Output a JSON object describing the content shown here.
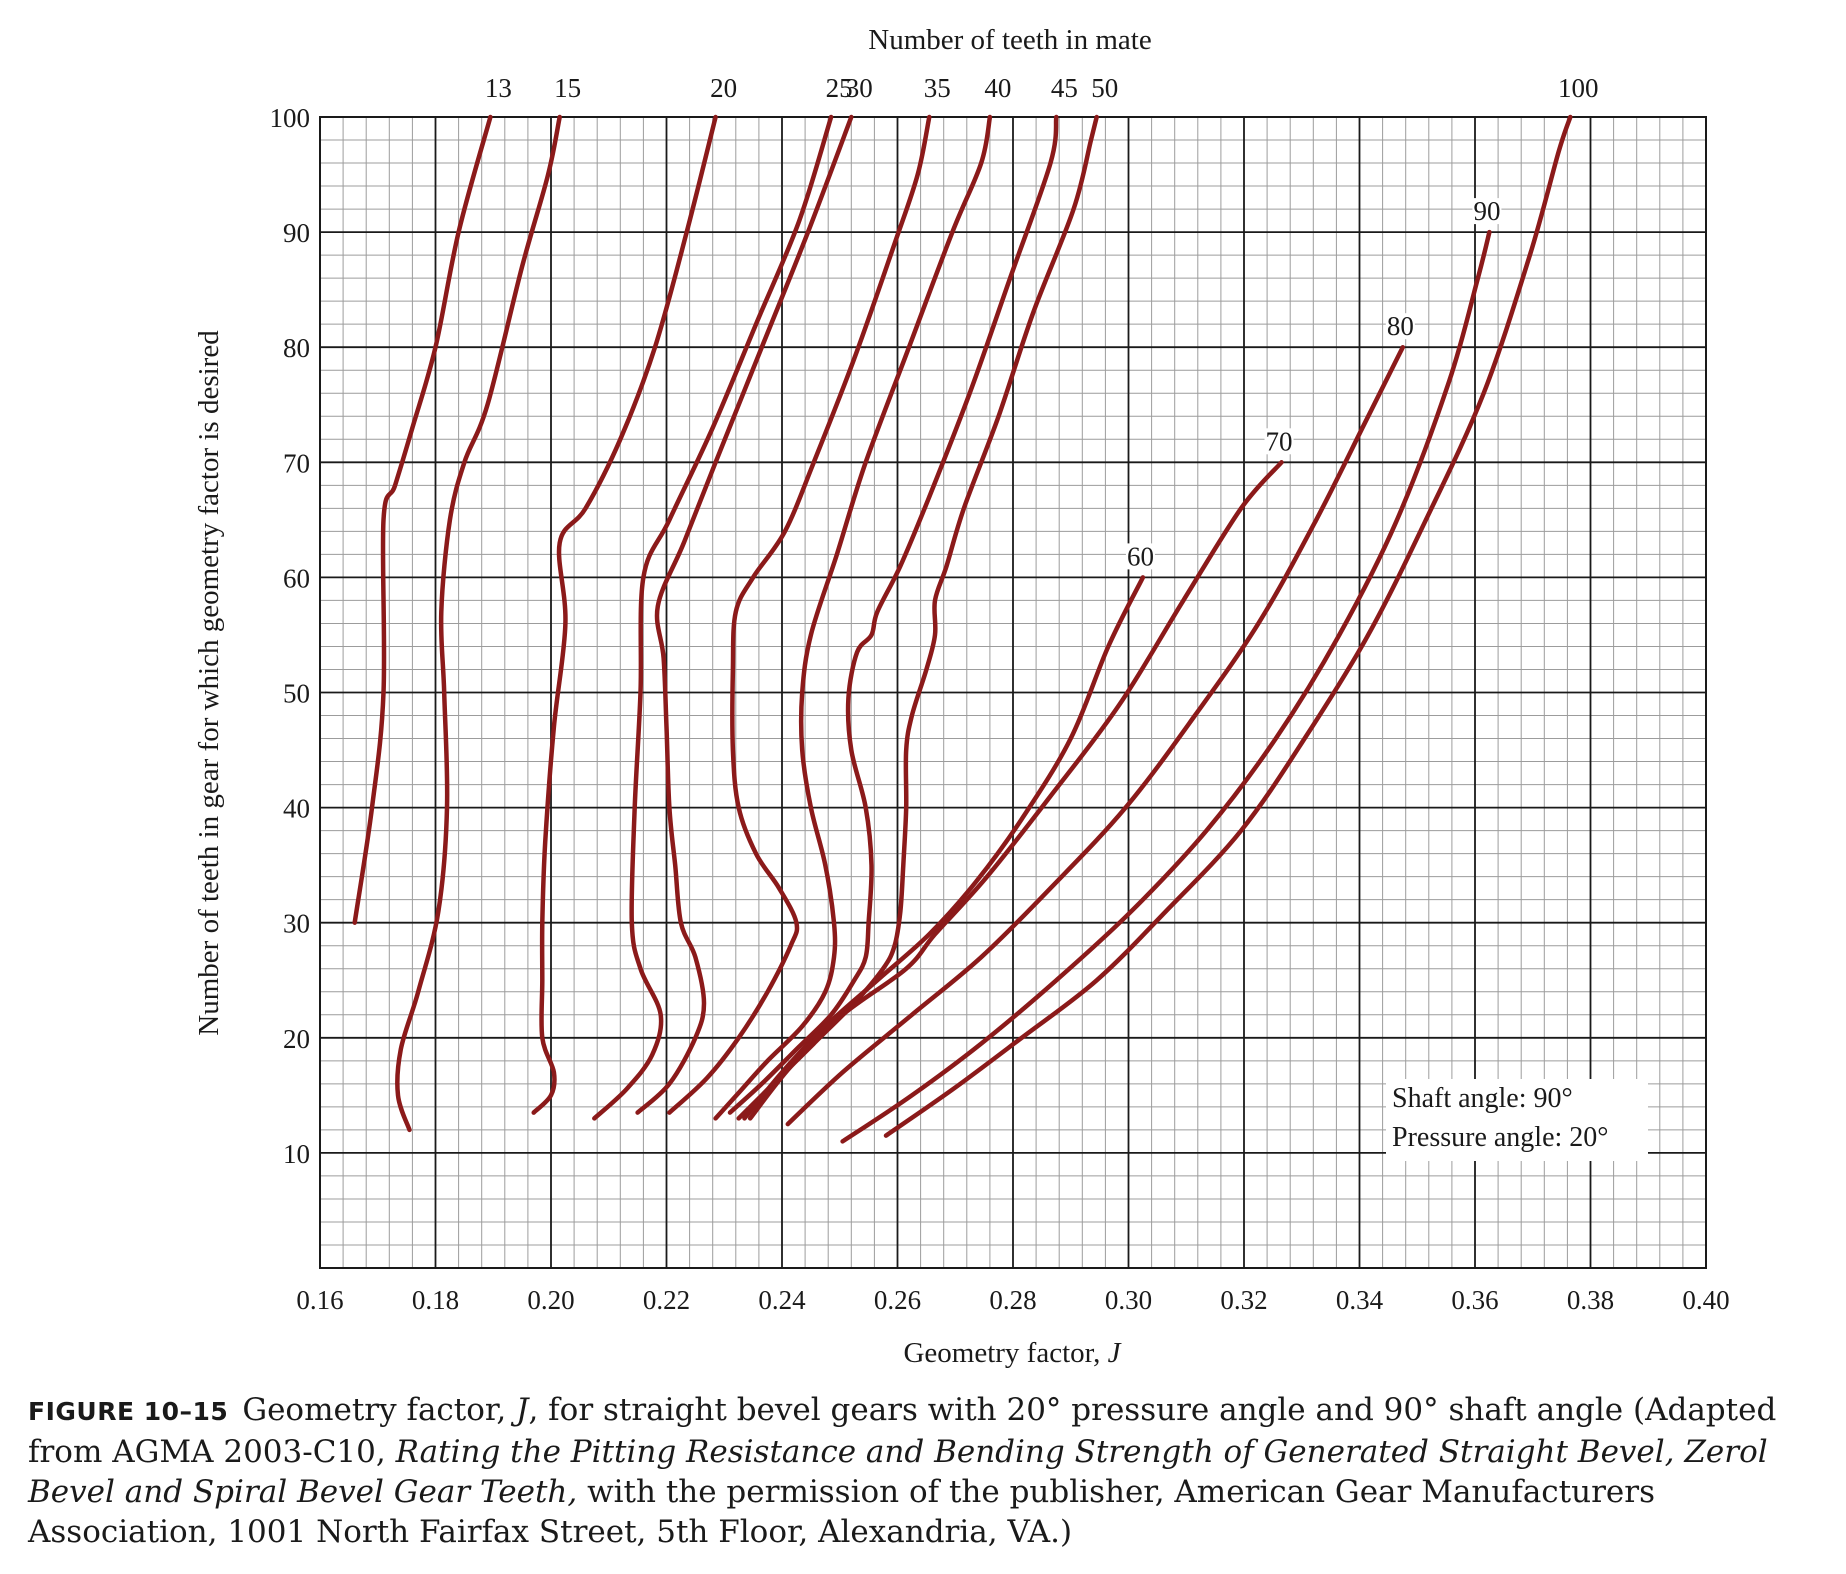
{
  "chart_data": {
    "type": "line",
    "title": "Number of teeth in mate",
    "xlabel": "Geometry factor, ",
    "xlabel_var": "J",
    "ylabel": "Number of teeth in gear for which geometry factor is desired",
    "xlim": [
      0.16,
      0.4
    ],
    "ylim": [
      0,
      100
    ],
    "x_ticks": [
      "0.16",
      "0.18",
      "0.20",
      "0.22",
      "0.24",
      "0.26",
      "0.28",
      "0.30",
      "0.32",
      "0.34",
      "0.36",
      "0.38",
      "0.40"
    ],
    "y_ticks": [
      "10",
      "20",
      "30",
      "40",
      "50",
      "60",
      "70",
      "80",
      "90",
      "100"
    ],
    "grid": true,
    "line_color": "#8b1a1a",
    "notes": [
      "Shaft angle: 90°",
      "Pressure angle: 20°"
    ],
    "series": [
      {
        "name": "13",
        "points": [
          [
            0.166,
            30
          ],
          [
            0.169,
            40
          ],
          [
            0.171,
            50
          ],
          [
            0.171,
            65
          ],
          [
            0.173,
            68
          ],
          [
            0.176,
            73
          ],
          [
            0.18,
            80
          ],
          [
            0.184,
            90
          ],
          [
            0.1895,
            100
          ]
        ]
      },
      {
        "name": "15",
        "points": [
          [
            0.1755,
            12
          ],
          [
            0.1735,
            15
          ],
          [
            0.174,
            19
          ],
          [
            0.177,
            24
          ],
          [
            0.1805,
            31
          ],
          [
            0.182,
            40
          ],
          [
            0.1815,
            50
          ],
          [
            0.181,
            57
          ],
          [
            0.1825,
            65
          ],
          [
            0.185,
            70
          ],
          [
            0.189,
            75
          ],
          [
            0.195,
            87
          ],
          [
            0.1995,
            95
          ],
          [
            0.2015,
            100
          ]
        ]
      },
      {
        "name": "20",
        "points": [
          [
            0.197,
            13.5
          ],
          [
            0.2,
            15
          ],
          [
            0.2005,
            17
          ],
          [
            0.1985,
            20
          ],
          [
            0.1985,
            25
          ],
          [
            0.1985,
            30
          ],
          [
            0.199,
            37
          ],
          [
            0.2005,
            47
          ],
          [
            0.2025,
            56
          ],
          [
            0.2015,
            63
          ],
          [
            0.206,
            66
          ],
          [
            0.212,
            72
          ],
          [
            0.218,
            80
          ],
          [
            0.2235,
            90
          ],
          [
            0.2285,
            100
          ]
        ]
      },
      {
        "name": "25",
        "points": [
          [
            0.2075,
            13
          ],
          [
            0.213,
            15.5
          ],
          [
            0.2175,
            18.5
          ],
          [
            0.219,
            22
          ],
          [
            0.2155,
            26
          ],
          [
            0.214,
            30
          ],
          [
            0.2145,
            40
          ],
          [
            0.2155,
            50
          ],
          [
            0.216,
            60
          ],
          [
            0.2205,
            65
          ],
          [
            0.228,
            73
          ],
          [
            0.2355,
            82
          ],
          [
            0.243,
            91
          ],
          [
            0.2485,
            100
          ]
        ]
      },
      {
        "name": "30",
        "points": [
          [
            0.215,
            13.5
          ],
          [
            0.2205,
            16
          ],
          [
            0.225,
            20
          ],
          [
            0.2265,
            23
          ],
          [
            0.225,
            27
          ],
          [
            0.2225,
            30
          ],
          [
            0.2215,
            35
          ],
          [
            0.2205,
            40
          ],
          [
            0.22,
            47
          ],
          [
            0.2195,
            53
          ],
          [
            0.2185,
            57.5
          ],
          [
            0.223,
            63
          ],
          [
            0.2285,
            70
          ],
          [
            0.2365,
            80
          ],
          [
            0.2445,
            90
          ],
          [
            0.252,
            100
          ]
        ]
      },
      {
        "name": "35",
        "points": [
          [
            0.2205,
            13.5
          ],
          [
            0.227,
            16.5
          ],
          [
            0.2325,
            20
          ],
          [
            0.2375,
            24
          ],
          [
            0.2415,
            28
          ],
          [
            0.2425,
            30
          ],
          [
            0.2395,
            33
          ],
          [
            0.2355,
            36
          ],
          [
            0.2325,
            40
          ],
          [
            0.2315,
            45
          ],
          [
            0.2315,
            52
          ],
          [
            0.232,
            57
          ],
          [
            0.235,
            60
          ],
          [
            0.2405,
            64
          ],
          [
            0.2455,
            70
          ],
          [
            0.2525,
            79
          ],
          [
            0.2595,
            89
          ],
          [
            0.2635,
            95
          ],
          [
            0.2655,
            100
          ]
        ]
      },
      {
        "name": "40",
        "points": [
          [
            0.2285,
            13
          ],
          [
            0.233,
            15.5
          ],
          [
            0.2375,
            18
          ],
          [
            0.2435,
            21
          ],
          [
            0.2475,
            24
          ],
          [
            0.249,
            27
          ],
          [
            0.249,
            30
          ],
          [
            0.2475,
            35
          ],
          [
            0.245,
            40
          ],
          [
            0.2435,
            45
          ],
          [
            0.2435,
            50
          ],
          [
            0.245,
            55
          ],
          [
            0.2495,
            62
          ],
          [
            0.2545,
            70
          ],
          [
            0.262,
            80
          ],
          [
            0.2695,
            90
          ],
          [
            0.2745,
            96
          ],
          [
            0.276,
            100
          ]
        ]
      },
      {
        "name": "45",
        "points": [
          [
            0.231,
            13.5
          ],
          [
            0.2365,
            16
          ],
          [
            0.2425,
            19
          ],
          [
            0.2485,
            22
          ],
          [
            0.2525,
            25
          ],
          [
            0.2545,
            27
          ],
          [
            0.255,
            30
          ],
          [
            0.2555,
            35
          ],
          [
            0.2545,
            40
          ],
          [
            0.252,
            45
          ],
          [
            0.2515,
            49.5
          ],
          [
            0.253,
            53.5
          ],
          [
            0.2555,
            55
          ],
          [
            0.2565,
            57
          ],
          [
            0.2605,
            61
          ],
          [
            0.2655,
            67
          ],
          [
            0.2725,
            76
          ],
          [
            0.2795,
            86
          ],
          [
            0.2865,
            96
          ],
          [
            0.2875,
            100
          ]
        ]
      },
      {
        "name": "50",
        "points": [
          [
            0.2325,
            13
          ],
          [
            0.2385,
            16
          ],
          [
            0.2455,
            19.5
          ],
          [
            0.2525,
            23
          ],
          [
            0.2575,
            26
          ],
          [
            0.2595,
            28
          ],
          [
            0.2605,
            31
          ],
          [
            0.261,
            35
          ],
          [
            0.2615,
            40
          ],
          [
            0.2615,
            45
          ],
          [
            0.2625,
            48
          ],
          [
            0.265,
            52
          ],
          [
            0.2665,
            55
          ],
          [
            0.2665,
            58
          ],
          [
            0.2685,
            61
          ],
          [
            0.2715,
            66
          ],
          [
            0.2775,
            74
          ],
          [
            0.2835,
            83
          ],
          [
            0.2905,
            92
          ],
          [
            0.2935,
            98
          ],
          [
            0.2945,
            100
          ]
        ]
      },
      {
        "name": "60",
        "points": [
          [
            0.2335,
            13
          ],
          [
            0.24,
            17
          ],
          [
            0.2475,
            21
          ],
          [
            0.2565,
            25
          ],
          [
            0.2655,
            29
          ],
          [
            0.2735,
            33.5
          ],
          [
            0.2815,
            39
          ],
          [
            0.29,
            46
          ],
          [
            0.2965,
            54
          ],
          [
            0.3025,
            60
          ]
        ]
      },
      {
        "name": "70",
        "points": [
          [
            0.2345,
            13
          ],
          [
            0.2415,
            17.5
          ],
          [
            0.2505,
            22
          ],
          [
            0.2615,
            26
          ],
          [
            0.2665,
            29
          ],
          [
            0.2755,
            34
          ],
          [
            0.2865,
            41
          ],
          [
            0.2985,
            49
          ],
          [
            0.3095,
            58
          ],
          [
            0.3195,
            66
          ],
          [
            0.3265,
            70
          ]
        ]
      },
      {
        "name": "80",
        "points": [
          [
            0.241,
            12.5
          ],
          [
            0.2505,
            17
          ],
          [
            0.2625,
            22
          ],
          [
            0.2745,
            27
          ],
          [
            0.2865,
            33
          ],
          [
            0.2995,
            40
          ],
          [
            0.3115,
            48
          ],
          [
            0.3225,
            56
          ],
          [
            0.3325,
            65
          ],
          [
            0.3415,
            74
          ],
          [
            0.3475,
            80
          ]
        ]
      },
      {
        "name": "90",
        "points": [
          [
            0.2505,
            11
          ],
          [
            0.2625,
            15
          ],
          [
            0.2745,
            19.5
          ],
          [
            0.2875,
            25
          ],
          [
            0.3005,
            31
          ],
          [
            0.3135,
            38
          ],
          [
            0.3255,
            46
          ],
          [
            0.3365,
            55
          ],
          [
            0.3465,
            65
          ],
          [
            0.3555,
            77
          ],
          [
            0.3605,
            86
          ],
          [
            0.3625,
            90
          ]
        ]
      },
      {
        "name": "100",
        "points": [
          [
            0.258,
            11.5
          ],
          [
            0.2695,
            15.5
          ],
          [
            0.2815,
            20
          ],
          [
            0.2945,
            25
          ],
          [
            0.3065,
            31
          ],
          [
            0.3195,
            38
          ],
          [
            0.3305,
            46
          ],
          [
            0.3415,
            55
          ],
          [
            0.3515,
            65
          ],
          [
            0.3615,
            76
          ],
          [
            0.3695,
            88
          ],
          [
            0.3745,
            97
          ],
          [
            0.3765,
            100
          ]
        ]
      }
    ]
  },
  "caption": {
    "figure_number": "FIGURE 10–15",
    "text1": "Geometry factor, ",
    "j_var": "J",
    "text2": ", for straight bevel gears with 20° pressure angle and 90° shaft angle (Adapted from AGMA 2003-C10, ",
    "italic_title": "Rating the Pitting Resistance and Bending Strength of Generated Straight Bevel, Zerol Bevel and Spiral Bevel Gear Teeth,",
    "text3": " with the permission of the publisher, American Gear Manufacturers Association, 1001 North Fairfax Street, 5th Floor, Alexandria, VA.)"
  }
}
